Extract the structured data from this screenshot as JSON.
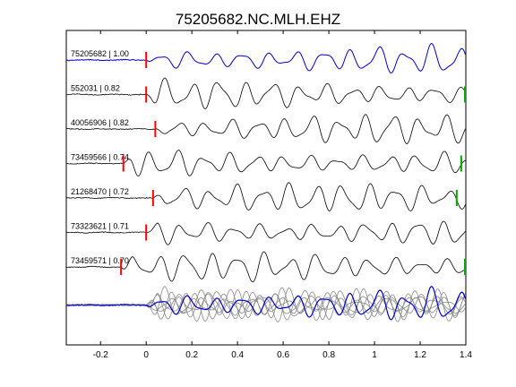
{
  "title": "75205682.NC.MLH.EHZ",
  "chart_data": {
    "type": "line",
    "title": "75205682.NC.MLH.EHZ",
    "xlabel": "",
    "ylabel": "",
    "xlim": [
      -0.35,
      1.4
    ],
    "xticks": [
      -0.2,
      0,
      0.2,
      0.4,
      0.6,
      0.8,
      1,
      1.2,
      1.4
    ],
    "xtick_labels": [
      "-0.2",
      "0",
      "0.2",
      "0.4",
      "0.6",
      "0.8",
      "1",
      "1.2",
      "1.4"
    ],
    "grid": false,
    "colors": {
      "reference": "#0000cc",
      "trace": "#000000",
      "stack": "#888888",
      "pick_red": "#ff0000",
      "pick_green": "#00aa00"
    },
    "traces": [
      {
        "label": "75205682 | 1.00",
        "reference": true,
        "pick": 0.0,
        "end_pick": null
      },
      {
        "label": "552031 | 0.82",
        "reference": false,
        "pick": 0.0,
        "end_pick": 1.4
      },
      {
        "label": "40056906 | 0.82",
        "reference": false,
        "pick": 0.04,
        "end_pick": null
      },
      {
        "label": "73459566 | 0.74",
        "reference": false,
        "pick": -0.1,
        "end_pick": 1.38
      },
      {
        "label": "21268470 | 0.72",
        "reference": false,
        "pick": 0.03,
        "end_pick": 1.36
      },
      {
        "label": "73323621 | 0.71",
        "reference": false,
        "pick": 0.0,
        "end_pick": null
      },
      {
        "label": "73459571 | 0.70",
        "reference": false,
        "pick": -0.11,
        "end_pick": 1.4
      }
    ]
  }
}
